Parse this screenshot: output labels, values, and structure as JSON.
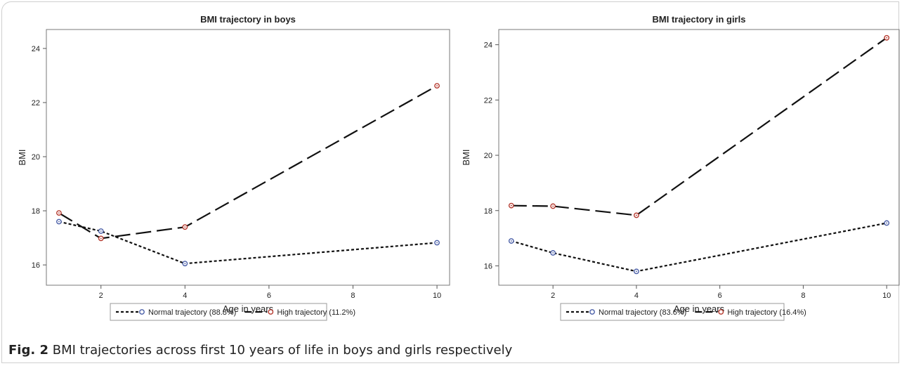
{
  "caption": {
    "label": "Fig. 2",
    "text": "BMI trajectories across first 10 years of life in boys and girls respectively"
  },
  "colors": {
    "normal_marker": "#4a5fa8",
    "high_marker": "#b53a2f",
    "line": "#111111"
  },
  "chart_data": [
    {
      "type": "line",
      "title": "BMI trajectory in boys",
      "xlabel": "Age in years",
      "ylabel": "BMI",
      "xlim": [
        0.7,
        10.3
      ],
      "ylim": [
        15.25,
        24.7
      ],
      "xticks": [
        2,
        4,
        6,
        8,
        10
      ],
      "yticks": [
        16,
        18,
        20,
        22,
        24
      ],
      "x": [
        1,
        2,
        4,
        10
      ],
      "legend_position": "bottom",
      "series": [
        {
          "name": "Normal trajectory (88.8%)",
          "values": [
            17.6,
            17.25,
            16.05,
            16.82
          ],
          "line_style": "dotted",
          "marker": "circle"
        },
        {
          "name": "High trajectory (11.2%)",
          "values": [
            17.92,
            16.98,
            17.4,
            22.62
          ],
          "line_style": "long-dash",
          "marker": "circle"
        }
      ]
    },
    {
      "type": "line",
      "title": "BMI trajectory in girls",
      "xlabel": "Age in years",
      "ylabel": "BMI",
      "xlim": [
        0.7,
        10.3
      ],
      "ylim": [
        15.3,
        24.55
      ],
      "xticks": [
        2,
        4,
        6,
        8,
        10
      ],
      "yticks": [
        16,
        18,
        20,
        22,
        24
      ],
      "x": [
        1,
        2,
        4,
        10
      ],
      "legend_position": "bottom",
      "series": [
        {
          "name": "Normal trajectory (83.6%)",
          "values": [
            16.9,
            16.47,
            15.8,
            17.55
          ],
          "line_style": "dotted",
          "marker": "circle"
        },
        {
          "name": "High trajectory (16.4%)",
          "values": [
            18.18,
            18.16,
            17.83,
            24.25
          ],
          "line_style": "long-dash",
          "marker": "circle"
        }
      ]
    }
  ]
}
